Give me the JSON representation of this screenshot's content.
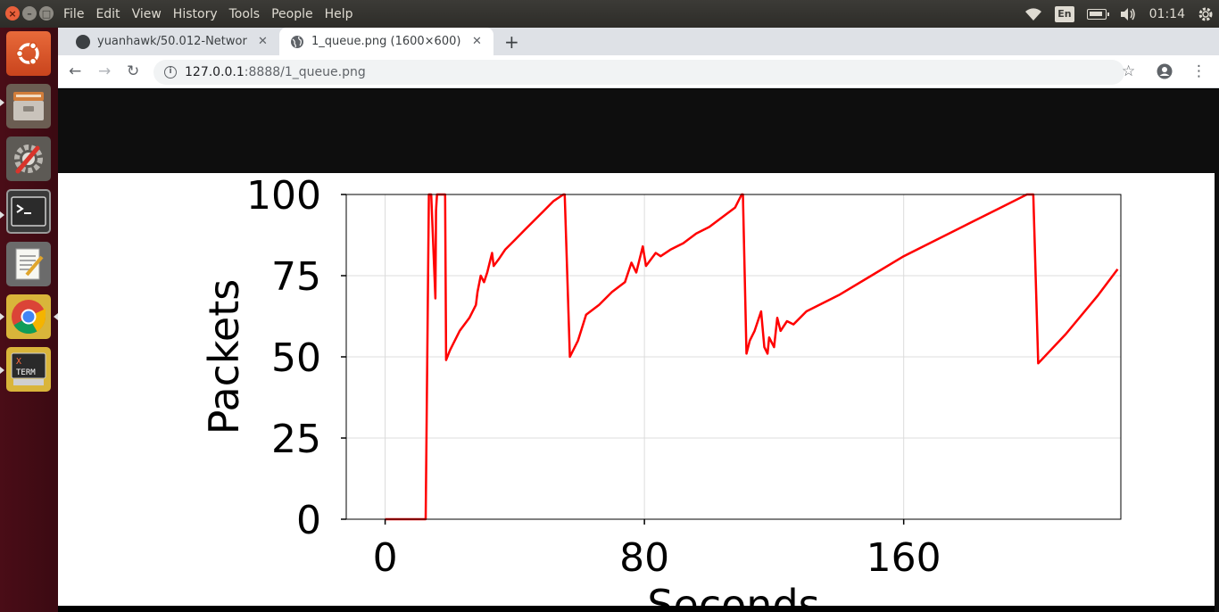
{
  "menu": [
    "File",
    "Edit",
    "View",
    "History",
    "Tools",
    "People",
    "Help"
  ],
  "tray": {
    "lang": "En",
    "clock": "01:14"
  },
  "launcher": [
    "ubuntu-dash",
    "files",
    "system-settings",
    "terminal",
    "text-editor",
    "chrome",
    "xterm"
  ],
  "xterm_label": [
    "X",
    "TERM"
  ],
  "tabs": [
    {
      "title": "yuanhawk/50.012-Networ",
      "favicon": "github-icon",
      "active": false
    },
    {
      "title": "1_queue.png (1600×600)",
      "favicon": "globe-icon",
      "active": true
    }
  ],
  "address": {
    "host": "127.0.0.1",
    "rest": ":8888/1_queue.png"
  },
  "colors": {
    "series": "#ff0000",
    "grid": "#dcdcdc",
    "viewer_bg": "#0e0e0e"
  },
  "chart_data": {
    "type": "line",
    "ylabel": "Packets",
    "xlabel": "Seconds",
    "xlim": [
      -12,
      227
    ],
    "ylim": [
      0,
      100
    ],
    "xticks": [
      0,
      80,
      160
    ],
    "yticks": [
      0,
      25,
      50,
      75,
      100
    ],
    "grid": true,
    "series": [
      {
        "x": [
          0,
          12.5,
          13.5,
          14.2,
          15.5,
          15.7,
          16.0,
          16.4,
          17.0,
          18.5,
          18.8,
          20,
          23,
          26,
          28,
          28.5,
          29.5,
          30.5,
          31.5,
          33,
          33.5,
          35,
          37,
          40,
          43,
          46,
          49,
          52,
          55,
          55.4,
          57,
          59.5,
          62,
          66,
          70,
          74,
          76,
          77.5,
          79.5,
          80.5,
          82,
          83.5,
          85,
          88,
          92,
          96,
          100,
          104,
          108,
          110,
          110.4,
          111.5,
          112.5,
          114,
          116,
          117,
          118,
          118.5,
          120,
          121,
          122,
          124,
          126,
          130,
          140,
          150,
          160,
          170,
          180,
          190,
          198,
          200,
          201.5,
          210,
          220,
          226
        ],
        "y": [
          0,
          0,
          100,
          100,
          68,
          95,
          100,
          100,
          100,
          100,
          49,
          52,
          58,
          62,
          66,
          70,
          75,
          73,
          76,
          82,
          78,
          80,
          83,
          86,
          89,
          92,
          95,
          98,
          100,
          100,
          50,
          55,
          63,
          66,
          70,
          73,
          79,
          76,
          84,
          78,
          80,
          82,
          81,
          83,
          85,
          88,
          90,
          93,
          96,
          100,
          100,
          51,
          55,
          58,
          64,
          53,
          51,
          56,
          53,
          62,
          58,
          61,
          60,
          64,
          69,
          75,
          81,
          86,
          91,
          96,
          100,
          100,
          48,
          57,
          69,
          77
        ]
      }
    ]
  }
}
